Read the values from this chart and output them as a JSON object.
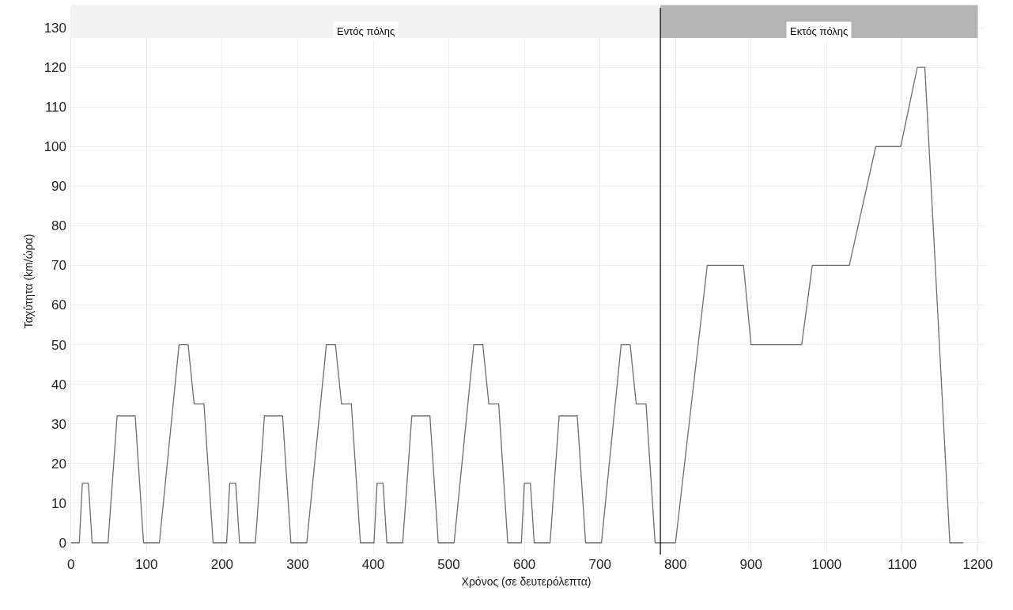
{
  "chart_data": {
    "type": "line",
    "xlabel": "Χρόνος (σε δευτερόλεπτα)",
    "ylabel": "Ταχύτητα (km/ώρα)",
    "x": [
      0,
      11,
      15,
      23,
      28,
      49,
      61,
      85,
      96,
      117,
      143,
      155,
      163,
      176,
      188,
      195,
      206,
      210,
      218,
      223,
      244,
      256,
      280,
      291,
      312,
      338,
      350,
      358,
      371,
      383,
      390,
      401,
      405,
      413,
      418,
      439,
      451,
      475,
      486,
      507,
      533,
      545,
      553,
      566,
      578,
      585,
      596,
      600,
      608,
      613,
      634,
      646,
      670,
      681,
      702,
      728,
      740,
      748,
      761,
      773,
      800,
      842,
      890,
      900,
      967,
      981,
      1030,
      1065,
      1098,
      1120,
      1130,
      1163,
      1181
    ],
    "series": [
      {
        "color": "#6e6e6e",
        "values": [
          0,
          0,
          15,
          15,
          0,
          0,
          32,
          32,
          0,
          0,
          50,
          50,
          35,
          35,
          0,
          0,
          0,
          15,
          15,
          0,
          0,
          32,
          32,
          0,
          0,
          50,
          50,
          35,
          35,
          0,
          0,
          0,
          15,
          15,
          0,
          0,
          32,
          32,
          0,
          0,
          50,
          50,
          35,
          35,
          0,
          0,
          0,
          15,
          15,
          0,
          0,
          32,
          32,
          0,
          0,
          50,
          50,
          35,
          35,
          0,
          0,
          70,
          70,
          50,
          50,
          70,
          70,
          100,
          100,
          120,
          120,
          0,
          0
        ]
      }
    ],
    "xlim": [
      -5,
      1210
    ],
    "ylim": [
      -3,
      135
    ],
    "xticks": [
      0,
      100,
      200,
      300,
      400,
      500,
      600,
      700,
      800,
      900,
      1000,
      1100,
      1200
    ],
    "yticks": [
      0,
      10,
      20,
      30,
      40,
      50,
      60,
      70,
      80,
      90,
      100,
      110,
      120,
      130
    ],
    "grid": true,
    "line_style": "solid",
    "marker": "none",
    "ref_lines": [
      {
        "axis": "x",
        "value": 780,
        "color": "#000000"
      }
    ],
    "bands": [
      {
        "axis": "x",
        "from": 0,
        "to": 780,
        "label": "Εντός πόλης",
        "color": "#f2f2f2"
      },
      {
        "axis": "x",
        "from": 780,
        "to": 1200,
        "label": "Εκτός πόλης",
        "color": "#b4b4b4"
      }
    ]
  }
}
